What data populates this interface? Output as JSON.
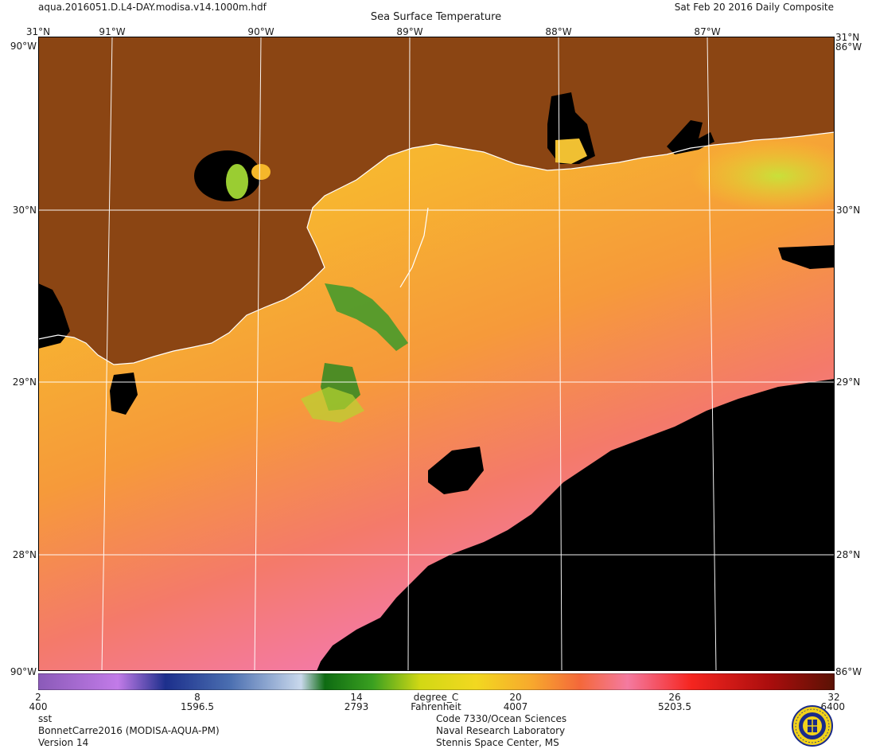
{
  "header": {
    "filename": "aqua.2016051.D.L4-DAY.modisa.v14.1000m.hdf",
    "date_label": "Sat Feb 20 2016 Daily Composite",
    "title": "Sea Surface Temperature"
  },
  "map": {
    "top_lon_labels": [
      "31°N",
      "91°W",
      "90°W",
      "89°W",
      "88°W",
      "87°W",
      "31°N"
    ],
    "left_lat_labels": [
      "30°N",
      "29°N",
      "28°N"
    ],
    "right_lat_labels": [
      "30°N",
      "29°N",
      "28°N"
    ],
    "corner_top_left": "90°W",
    "corner_top_right": "86°W",
    "corner_bottom_left": "90°W",
    "corner_bottom_right": "86°W",
    "colors": {
      "land": "#8b4513",
      "no_data": "#000000",
      "coastline": "#ffffff",
      "grid": "#ffffff"
    }
  },
  "colorbar": {
    "celsius_ticks": [
      "2",
      "8",
      "14",
      "20",
      "26",
      "32"
    ],
    "fahrenheit_ticks": [
      "400",
      "1596.5",
      "2793",
      "4007",
      "5203.5",
      "6400"
    ],
    "unit_label": "degree_C",
    "alt_unit_label": "Fahrenheit",
    "stops": [
      "#8a5ab8",
      "#c27be8",
      "#1c2f8c",
      "#4a6eb0",
      "#c9d8ec",
      "#0e6b12",
      "#3aa020",
      "#d2d814",
      "#f2d820",
      "#f7a82d",
      "#f4683a",
      "#f47aa0",
      "#f5251f",
      "#a90d0d",
      "#5a1204"
    ]
  },
  "footer": {
    "left": [
      "sst",
      "BonnetCarre2016 (MODISA-AQUA-PM)",
      "Version 14"
    ],
    "center": [
      "Code 7330/Ocean Sciences",
      "Naval Research Laboratory",
      "Stennis Space Center, MS"
    ],
    "seal_icon": "nrl-seal-icon"
  }
}
